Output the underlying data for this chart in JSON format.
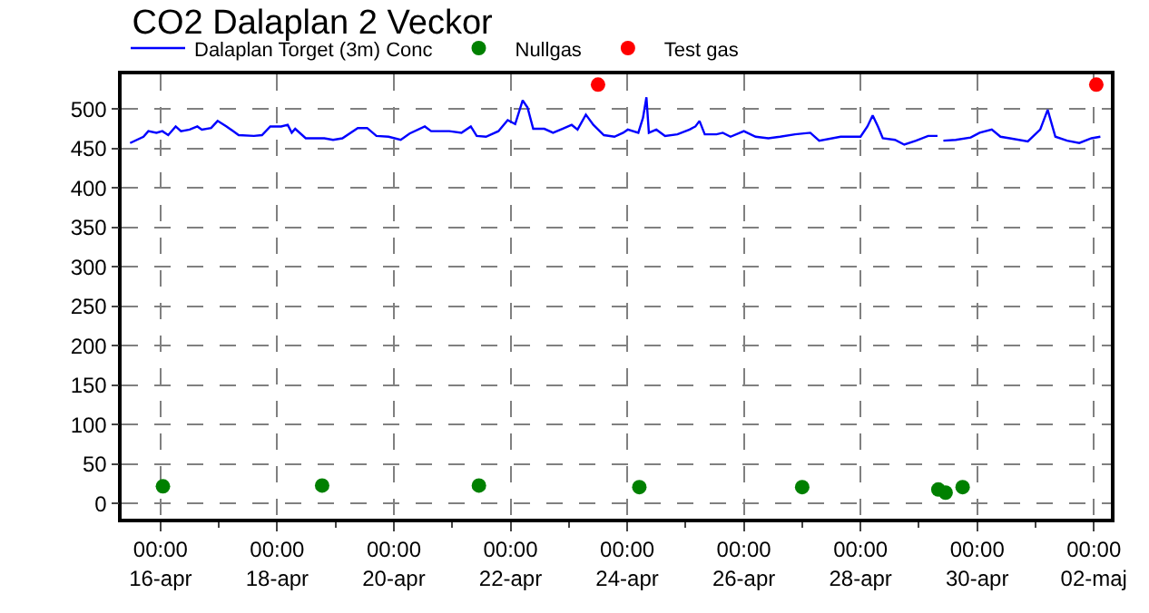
{
  "chart_data": {
    "type": "line",
    "title": "CO2 Dalaplan 2 Veckor",
    "xlim": [
      "--04-15T08:00",
      "--05-02T07:00"
    ],
    "xticks": [
      {
        "value": "--04-16T00:00",
        "label": "00:00\n16-apr"
      },
      {
        "value": "--04-18T00:00",
        "label": "00:00\n18-apr"
      },
      {
        "value": "--04-20T00:00",
        "label": "00:00\n20-apr"
      },
      {
        "value": "--04-22T00:00",
        "label": "00:00\n22-apr"
      },
      {
        "value": "--04-24T00:00",
        "label": "00:00\n24-apr"
      },
      {
        "value": "--04-26T00:00",
        "label": "00:00\n26-apr"
      },
      {
        "value": "--04-28T00:00",
        "label": "00:00\n28-apr"
      },
      {
        "value": "--04-30T00:00",
        "label": "00:00\n30-apr"
      },
      {
        "value": "--05-02T00:00",
        "label": "00:00\n02-maj"
      }
    ],
    "ylim": [
      -19,
      544
    ],
    "yticks": [
      0,
      50,
      100,
      150,
      200,
      250,
      300,
      350,
      400,
      450,
      500
    ],
    "grid": true,
    "legend": "top left",
    "series": [
      {
        "name": "Dalaplan Torget (3m) Conc",
        "color": "#0000ff",
        "marker": "none",
        "x": [
          "--04-15T11:30",
          "--04-15T17:00",
          "--04-15T19:00",
          "--04-15T22:20",
          "--04-16T00:45",
          "--04-16T03:10",
          "--04-16T06:15",
          "--04-16T08:25",
          "--04-16T12:00",
          "--04-16T15:10",
          "--04-16T17:00",
          "--04-16T20:50",
          "--04-16T23:30",
          "--04-17T03:10",
          "--04-17T08:10",
          "--04-17T14:25",
          "--04-17T17:45",
          "--04-17T21:10",
          "--04-18T01:40",
          "--04-18T04:20",
          "--04-18T06:00",
          "--04-18T07:25",
          "--04-18T11:45",
          "--04-18T19:25",
          "--04-18T23:00",
          "--04-19T02:50",
          "--04-19T09:10",
          "--04-19T13:00",
          "--04-19T16:50",
          "--04-19T21:50",
          "--04-20T02:50",
          "--04-20T06:30",
          "--04-20T12:45",
          "--04-20T15:20",
          "--04-20T17:45",
          "--04-20T22:50",
          "--04-21T03:50",
          "--04-21T07:40",
          "--04-21T10:05",
          "--04-21T13:55",
          "--04-21T19:00",
          "--04-21T22:50",
          "--04-22T01:55",
          "--04-22T05:00",
          "--04-22T07:00",
          "--04-22T09:20",
          "--04-22T13:55",
          "--04-22T17:30",
          "--04-22T21:20",
          "--04-23T01:10",
          "--04-23T03:35",
          "--04-23T07:00",
          "--04-23T10:05",
          "--04-23T14:25",
          "--04-23T18:45",
          "--04-23T22:20",
          "--04-24T00:15",
          "--04-24T04:35",
          "--04-24T06:30",
          "--04-24T07:55",
          "--04-24T08:55",
          "--04-24T12:00",
          "--04-24T15:35",
          "--04-24T20:40",
          "--04-25T01:40",
          "--04-25T04:05",
          "--04-25T05:45",
          "--04-25T07:55",
          "--04-25T12:45",
          "--04-25T15:20",
          "--04-25T18:30",
          "--04-26T00:00",
          "--04-26T04:50",
          "--04-26T10:05",
          "--04-26T14:55",
          "--04-26T21:05",
          "--04-27T03:20",
          "--04-27T07:00",
          "--04-27T15:50",
          "--04-28T00:00",
          "--04-28T02:50",
          "--04-28T05:00",
          "--04-28T07:10",
          "--04-28T09:10",
          "--04-28T14:10",
          "--04-28T18:00",
          "--04-28T22:50",
          "--04-29T03:50",
          "--04-29T07:40",
          "--04-29T08:50",
          "--04-29T10:05",
          "--04-29T15:10",
          "--04-29T21:20",
          "--04-30T01:00",
          "--04-30T06:00",
          "--04-30T09:35",
          "--04-30T13:25",
          "--04-30T20:50",
          "--05-01T01:55",
          "--05-01T05:00",
          "--05-01T08:10",
          "--05-01T13:00",
          "--05-01T18:00",
          "--05-01T23:00",
          "--05-02T02:40"
        ],
        "values": [
          457,
          465,
          472,
          470,
          472,
          467,
          478,
          472,
          474,
          478,
          474,
          476,
          485,
          478,
          467,
          466,
          467,
          478,
          478,
          480,
          470,
          475,
          463,
          463,
          461,
          463,
          476,
          476,
          466,
          465,
          461,
          469,
          478,
          472,
          472,
          472,
          470,
          478,
          466,
          465,
          472,
          486,
          481,
          511,
          502,
          475,
          475,
          470,
          475,
          480,
          474,
          493,
          480,
          467,
          465,
          470,
          474,
          470,
          489,
          515,
          470,
          474,
          466,
          468,
          474,
          478,
          485,
          468,
          468,
          470,
          465,
          472,
          465,
          463,
          465,
          468,
          470,
          460,
          465,
          465,
          478,
          492,
          478,
          463,
          461,
          455,
          460,
          466,
          466,
          null,
          460,
          461,
          464,
          470,
          474,
          465,
          463,
          459,
          474,
          499,
          465,
          460,
          457,
          463,
          465
        ]
      },
      {
        "name": "Nullgas",
        "type": "scatter",
        "color": "#008000",
        "marker": "circle",
        "x": [
          "--04-16T01:00",
          "--04-18T18:30",
          "--04-21T11:00",
          "--04-24T05:00",
          "--04-27T00:00",
          "--04-29T08:00",
          "--04-29T11:00",
          "--04-29T18:00"
        ],
        "values": [
          22,
          23,
          23,
          21,
          21,
          18,
          14,
          21
        ]
      },
      {
        "name": "Test gas",
        "type": "scatter",
        "color": "#ff0000",
        "marker": "circle",
        "x": [
          "--04-23T12:00",
          "--05-02T01:00"
        ],
        "values": [
          531,
          531
        ]
      }
    ]
  }
}
